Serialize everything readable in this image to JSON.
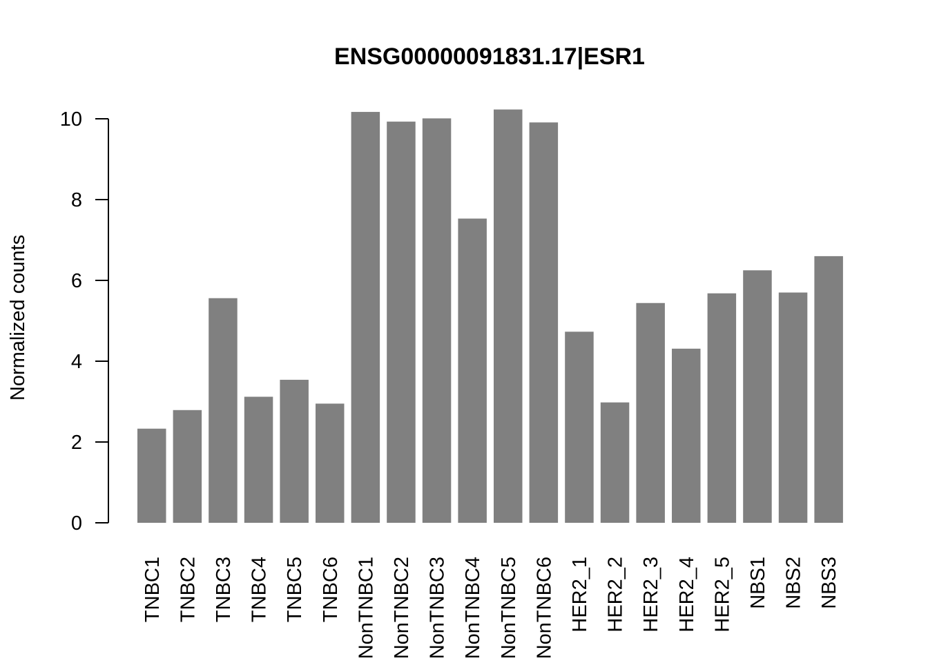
{
  "chart_data": {
    "type": "bar",
    "title": "ENSG00000091831.17|ESR1",
    "xlabel": "",
    "ylabel": "Normalized counts",
    "ylim": [
      0,
      10
    ],
    "yticks": [
      "0",
      "2",
      "4",
      "6",
      "8",
      "10"
    ],
    "categories": [
      "TNBC1",
      "TNBC2",
      "TNBC3",
      "TNBC4",
      "TNBC5",
      "TNBC6",
      "NonTNBC1",
      "NonTNBC2",
      "NonTNBC3",
      "NonTNBC4",
      "NonTNBC5",
      "NonTNBC6",
      "HER2_1",
      "HER2_2",
      "HER2_3",
      "HER2_4",
      "HER2_5",
      "NBS1",
      "NBS2",
      "NBS3"
    ],
    "values": [
      2.33,
      2.79,
      5.56,
      3.12,
      3.54,
      2.95,
      10.17,
      9.93,
      10.01,
      7.53,
      10.23,
      9.91,
      4.73,
      2.98,
      5.44,
      4.31,
      5.68,
      6.25,
      5.7,
      6.6
    ],
    "bar_color": "#808080",
    "grid": false,
    "legend": "none"
  }
}
